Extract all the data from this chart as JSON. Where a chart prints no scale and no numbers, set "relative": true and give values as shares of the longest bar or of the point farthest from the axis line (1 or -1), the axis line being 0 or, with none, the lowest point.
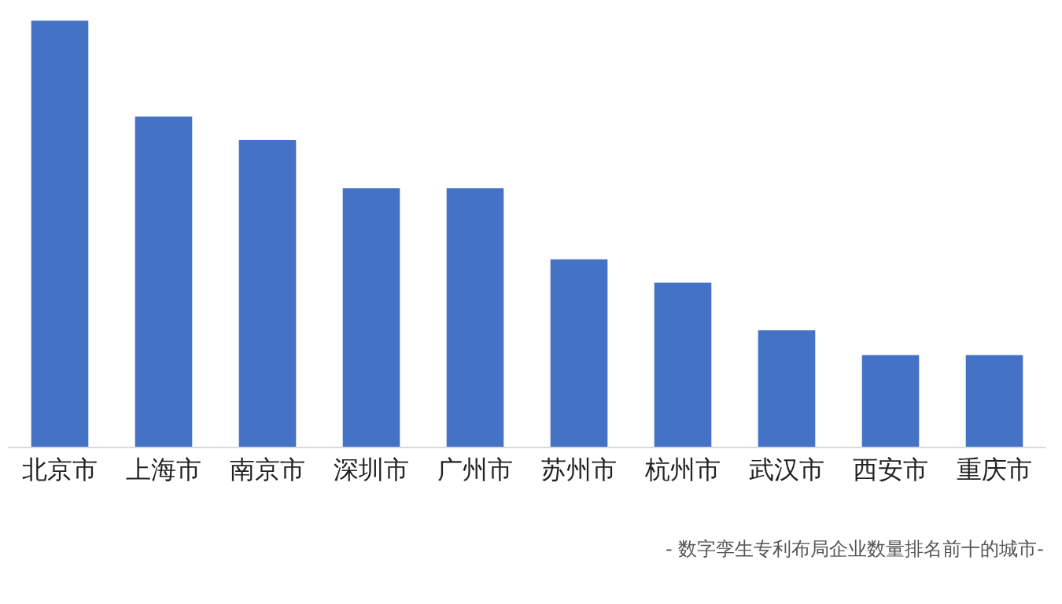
{
  "chart_data": {
    "type": "bar",
    "relative": true,
    "categories": [
      "北京市",
      "上海市",
      "南京市",
      "深圳市",
      "广州市",
      "苏州市",
      "杭州市",
      "武汉市",
      "西安市",
      "重庆市"
    ],
    "values": [
      1,
      0.775,
      0.72,
      0.607,
      0.607,
      0.44,
      0.385,
      0.273,
      0.215,
      0.215
    ],
    "color": "#4472c4",
    "annotations": [
      "- 数字孪生专利布局企业数量排名前十的城市-"
    ]
  }
}
